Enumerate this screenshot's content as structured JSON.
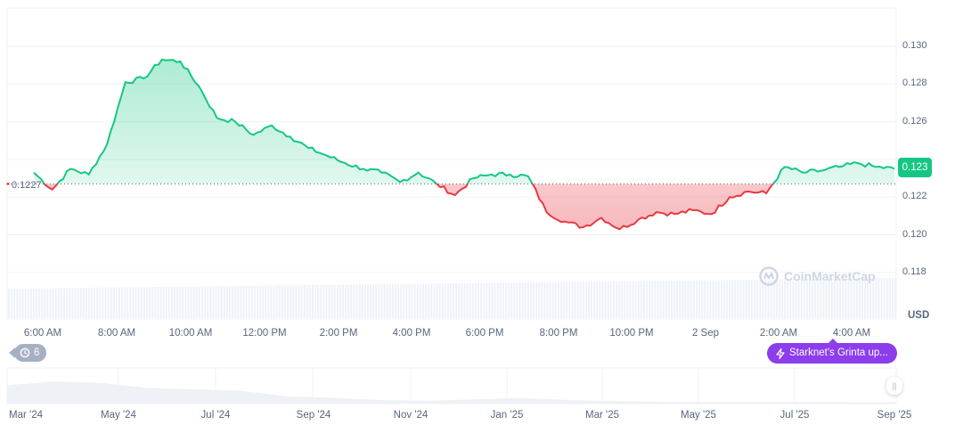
{
  "chart_data": {
    "type": "area",
    "title": "",
    "currency": "USD",
    "baseline_value": 0.1227,
    "current_value": 0.123,
    "ylim": [
      0.117,
      0.1312
    ],
    "y_ticks": [
      "0.130",
      "0.128",
      "0.126",
      "0.124",
      "0.122",
      "0.120",
      "0.118"
    ],
    "x_ticks": [
      "6:00 AM",
      "8:00 AM",
      "10:00 AM",
      "12:00 PM",
      "2:00 PM",
      "4:00 PM",
      "6:00 PM",
      "8:00 PM",
      "10:00 PM",
      "2 Sep",
      "2:00 AM",
      "4:00 AM"
    ],
    "series": [
      {
        "name": "Price",
        "x": [
          "5:30 AM",
          "6:00 AM",
          "6:30 AM",
          "7:00 AM",
          "7:30 AM",
          "8:00 AM",
          "8:30 AM",
          "9:00 AM",
          "9:30 AM",
          "10:00 AM",
          "10:30 AM",
          "11:00 AM",
          "11:30 AM",
          "12:00 PM",
          "12:30 PM",
          "1:00 PM",
          "1:30 PM",
          "2:00 PM",
          "2:30 PM",
          "3:00 PM",
          "3:30 PM",
          "4:00 PM",
          "4:30 PM",
          "5:00 PM",
          "5:30 PM",
          "6:00 PM",
          "6:30 PM",
          "7:00 PM",
          "7:30 PM",
          "8:00 PM",
          "8:30 PM",
          "9:00 PM",
          "9:30 PM",
          "10:00 PM",
          "10:30 PM",
          "11:00 PM",
          "11:30 PM",
          "12:00 AM",
          "12:30 AM",
          "1:00 AM",
          "1:30 AM",
          "2:00 AM",
          "2:30 AM",
          "3:00 AM",
          "3:30 AM",
          "4:00 AM",
          "4:30 AM",
          "5:00 AM"
        ],
        "values": [
          0.1233,
          0.1224,
          0.1235,
          0.1232,
          0.1248,
          0.1281,
          0.1283,
          0.1293,
          0.1292,
          0.1279,
          0.1262,
          0.126,
          0.1253,
          0.1258,
          0.1252,
          0.1246,
          0.1242,
          0.1238,
          0.1235,
          0.1233,
          0.1228,
          0.1233,
          0.1227,
          0.1221,
          0.123,
          0.1232,
          0.1232,
          0.1231,
          0.1212,
          0.1207,
          0.1204,
          0.1209,
          0.1203,
          0.1208,
          0.1212,
          0.1211,
          0.1213,
          0.1211,
          0.122,
          0.1223,
          0.1222,
          0.1236,
          0.1233,
          0.1234,
          0.1236,
          0.1238,
          0.1236,
          0.1235
        ]
      }
    ],
    "navigator": {
      "x_ticks": [
        "Mar '24",
        "May '24",
        "Jul '24",
        "Sep '24",
        "Nov '24",
        "Jan '25",
        "Mar '25",
        "May '25",
        "Jul '25",
        "Sep '25"
      ],
      "values": [
        0.52,
        0.62,
        0.58,
        0.44,
        0.4,
        0.36,
        0.2,
        0.16,
        0.1,
        0.08,
        0.12,
        0.16,
        0.1,
        0.07,
        0.05,
        0.05,
        0.05,
        0.05,
        0.04,
        0.04
      ]
    },
    "grid": true,
    "legend_position": "none"
  },
  "labels": {
    "baseline": "0.1227",
    "current_price": "0.123",
    "currency": "USD",
    "watermark": "CoinMarketCap",
    "history_count": "6",
    "news_badge": "Starknet's Grinta up..."
  },
  "colors": {
    "up": "#16c784",
    "down": "#ea3943",
    "news": "#8c3dec",
    "history": "#a6b0c3"
  }
}
